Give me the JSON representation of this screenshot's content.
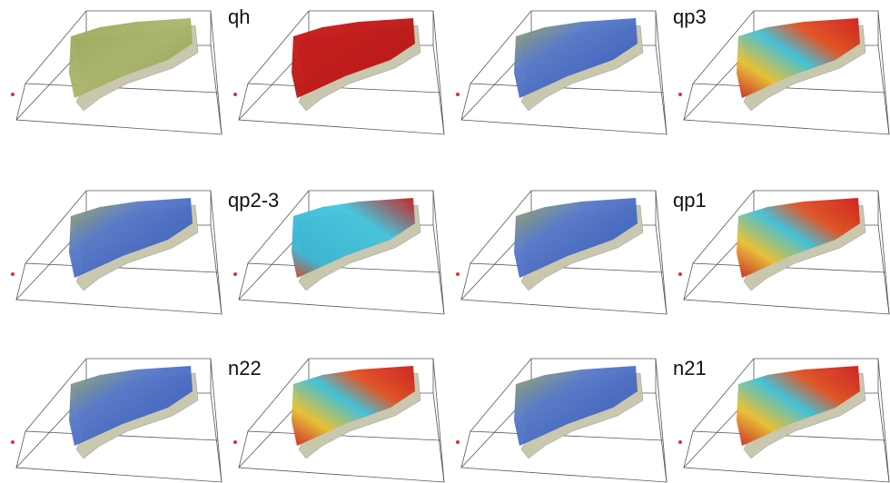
{
  "panels": [
    {
      "label": "qh"
    },
    {
      "label": "qp3"
    },
    {
      "label": "qp2-3"
    },
    {
      "label": "qp1"
    },
    {
      "label": "n22"
    },
    {
      "label": "n21"
    }
  ]
}
